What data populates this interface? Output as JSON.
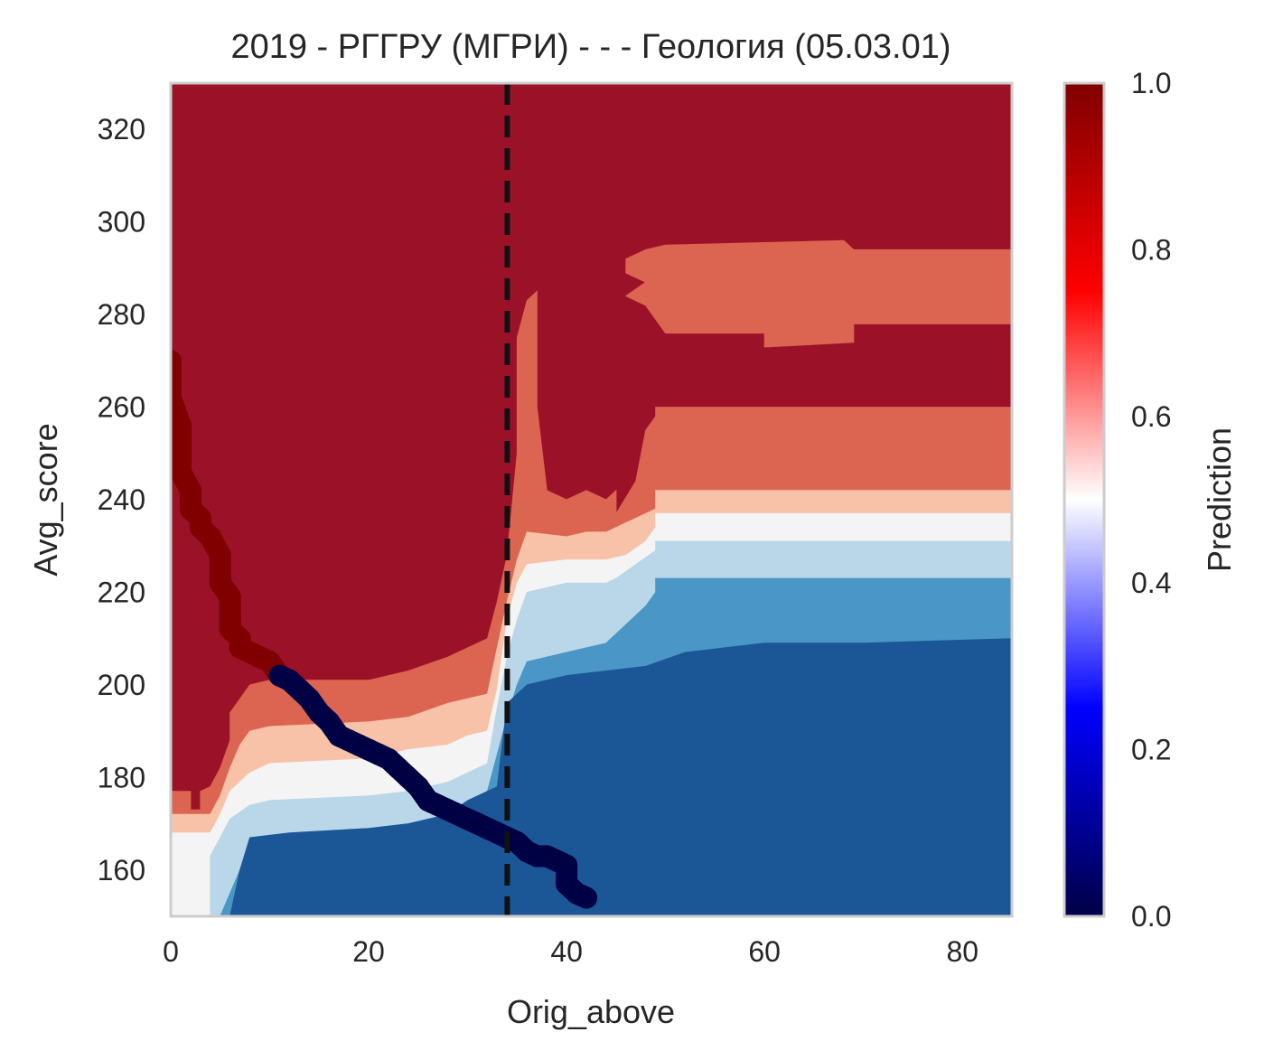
{
  "chart_data": {
    "type": "heatmap",
    "title": "2019 - РГГРУ (МГРИ) - - - Геология (05.03.01)",
    "xlabel": "Orig_above",
    "ylabel": "Avg_score",
    "xlim": [
      0,
      85
    ],
    "ylim": [
      150,
      330
    ],
    "x_ticks": [
      "0",
      "20",
      "40",
      "60",
      "80"
    ],
    "x_tick_values": [
      0,
      20,
      40,
      60,
      80
    ],
    "y_ticks": [
      "160",
      "180",
      "200",
      "220",
      "240",
      "260",
      "280",
      "300",
      "320"
    ],
    "y_tick_values": [
      160,
      180,
      200,
      220,
      240,
      260,
      280,
      300,
      320
    ],
    "vline_x": 34,
    "vline_style": "dashed",
    "colorbar": {
      "label": "Prediction",
      "range": [
        0,
        1
      ],
      "ticks": [
        "0.0",
        "0.2",
        "0.4",
        "0.6",
        "0.8",
        "1.0"
      ],
      "tick_values": [
        0,
        0.2,
        0.4,
        0.6,
        0.8,
        1.0
      ],
      "colormap": "seismic"
    },
    "contour_levels": [
      {
        "range": "0.0-0.1",
        "color": "#1b5796"
      },
      {
        "range": "0.1-0.2",
        "color": "#4a97c7"
      },
      {
        "range": "0.2-0.3",
        "color": "#b9d7e8"
      },
      {
        "range": "0.3-0.4",
        "color": "#f4f4f4"
      },
      {
        "range": "0.4-0.5",
        "color": "#f8c2a8"
      },
      {
        "range": "0.5-0.6",
        "color": "#dc6551"
      },
      {
        "range": "0.6-1.0",
        "color": "#9b1228"
      }
    ],
    "regions": [
      {
        "level": 6,
        "points": [
          [
            0,
            150
          ],
          [
            0,
            330
          ],
          [
            85,
            330
          ],
          [
            85,
            150
          ]
        ]
      },
      {
        "level": 5,
        "points": [
          [
            0,
            150
          ],
          [
            0,
            177
          ],
          [
            2,
            177
          ],
          [
            2,
            173
          ],
          [
            3,
            173
          ],
          [
            3,
            177
          ],
          [
            4,
            178
          ],
          [
            5,
            182
          ],
          [
            6,
            188
          ],
          [
            6,
            194
          ],
          [
            7,
            197
          ],
          [
            8,
            200
          ],
          [
            10,
            201
          ],
          [
            20,
            201
          ],
          [
            24,
            203
          ],
          [
            28,
            206
          ],
          [
            32,
            210
          ],
          [
            33,
            218
          ],
          [
            34,
            228
          ],
          [
            35,
            250
          ],
          [
            35,
            275
          ],
          [
            36,
            283
          ],
          [
            37,
            285
          ],
          [
            37,
            260
          ],
          [
            38,
            242
          ],
          [
            40,
            240
          ],
          [
            42,
            242
          ],
          [
            44,
            240
          ],
          [
            45,
            242
          ],
          [
            45,
            237
          ],
          [
            47,
            244
          ],
          [
            48,
            255
          ],
          [
            49,
            258
          ],
          [
            49,
            260
          ],
          [
            85,
            260
          ],
          [
            85,
            150
          ]
        ]
      },
      {
        "level": 5,
        "points": [
          [
            46,
            292
          ],
          [
            48,
            294
          ],
          [
            50,
            295
          ],
          [
            68,
            296
          ],
          [
            69,
            294
          ],
          [
            85,
            294
          ],
          [
            85,
            278
          ],
          [
            69,
            278
          ],
          [
            69,
            274
          ],
          [
            60,
            273
          ],
          [
            60,
            276
          ],
          [
            50,
            276
          ],
          [
            48,
            282
          ],
          [
            46,
            284
          ],
          [
            48,
            287
          ],
          [
            46,
            289
          ]
        ]
      },
      {
        "level": 4,
        "points": [
          [
            0,
            150
          ],
          [
            0,
            172
          ],
          [
            4,
            172
          ],
          [
            5,
            176
          ],
          [
            6,
            182
          ],
          [
            7,
            187
          ],
          [
            8,
            190
          ],
          [
            10,
            191
          ],
          [
            20,
            192
          ],
          [
            24,
            193
          ],
          [
            28,
            196
          ],
          [
            32,
            198
          ],
          [
            33,
            208
          ],
          [
            34,
            218
          ],
          [
            35,
            227
          ],
          [
            36,
            233
          ],
          [
            40,
            232
          ],
          [
            42,
            233
          ],
          [
            44,
            233
          ],
          [
            45,
            234
          ],
          [
            47,
            236
          ],
          [
            49,
            238
          ],
          [
            49,
            242
          ],
          [
            85,
            242
          ],
          [
            85,
            150
          ]
        ]
      },
      {
        "level": 3,
        "points": [
          [
            0,
            150
          ],
          [
            0,
            168
          ],
          [
            4,
            168
          ],
          [
            5,
            172
          ],
          [
            6,
            177
          ],
          [
            8,
            181
          ],
          [
            10,
            183
          ],
          [
            20,
            184
          ],
          [
            24,
            186
          ],
          [
            28,
            187
          ],
          [
            30,
            189
          ],
          [
            32,
            190
          ],
          [
            33,
            199
          ],
          [
            34,
            214
          ],
          [
            35,
            222
          ],
          [
            36,
            226
          ],
          [
            40,
            227
          ],
          [
            44,
            227
          ],
          [
            46,
            228
          ],
          [
            48,
            231
          ],
          [
            49,
            234
          ],
          [
            49,
            237
          ],
          [
            85,
            237
          ],
          [
            85,
            150
          ]
        ]
      },
      {
        "level": 2,
        "points": [
          [
            4,
            150
          ],
          [
            4,
            163
          ],
          [
            5,
            167
          ],
          [
            6,
            171
          ],
          [
            8,
            174
          ],
          [
            10,
            175
          ],
          [
            20,
            176
          ],
          [
            24,
            177
          ],
          [
            28,
            179
          ],
          [
            30,
            181
          ],
          [
            32,
            183
          ],
          [
            33,
            195
          ],
          [
            34,
            206
          ],
          [
            35,
            214
          ],
          [
            36,
            220
          ],
          [
            40,
            222
          ],
          [
            44,
            222
          ],
          [
            45,
            223
          ],
          [
            47,
            226
          ],
          [
            49,
            229
          ],
          [
            49,
            231
          ],
          [
            85,
            231
          ],
          [
            85,
            150
          ]
        ]
      },
      {
        "level": 1,
        "points": [
          [
            5,
            150
          ],
          [
            6,
            155
          ],
          [
            7,
            160
          ],
          [
            8,
            163
          ],
          [
            10,
            164
          ],
          [
            20,
            165
          ],
          [
            24,
            167
          ],
          [
            27,
            169
          ],
          [
            30,
            173
          ],
          [
            32,
            177
          ],
          [
            33,
            185
          ],
          [
            34,
            193
          ],
          [
            35,
            200
          ],
          [
            36,
            205
          ],
          [
            40,
            207
          ],
          [
            44,
            209
          ],
          [
            46,
            213
          ],
          [
            48,
            217
          ],
          [
            49,
            220
          ],
          [
            49,
            223
          ],
          [
            85,
            223
          ],
          [
            85,
            150
          ]
        ]
      },
      {
        "level": 0,
        "points": [
          [
            6,
            150
          ],
          [
            7,
            160
          ],
          [
            8,
            167
          ],
          [
            12,
            168
          ],
          [
            20,
            169
          ],
          [
            24,
            170
          ],
          [
            28,
            172
          ],
          [
            30,
            175
          ],
          [
            33,
            178
          ],
          [
            34,
            196
          ],
          [
            36,
            200
          ],
          [
            40,
            202
          ],
          [
            44,
            203
          ],
          [
            48,
            204
          ],
          [
            52,
            207
          ],
          [
            56,
            208
          ],
          [
            60,
            209
          ],
          [
            70,
            209
          ],
          [
            85,
            210
          ],
          [
            85,
            150
          ]
        ]
      }
    ],
    "path_series": {
      "x": [
        0,
        0,
        1,
        1,
        1,
        2,
        2,
        2,
        3,
        3,
        4,
        5,
        5,
        6,
        6,
        6,
        7,
        7,
        8,
        9,
        10,
        11,
        12,
        13,
        14,
        15,
        16,
        17,
        18,
        19,
        20,
        21,
        22,
        23,
        24,
        25,
        26,
        27,
        28,
        29,
        30,
        31,
        32,
        33,
        34,
        35,
        36,
        37,
        38,
        39,
        40,
        40,
        41,
        42
      ],
      "y": [
        270,
        262,
        256,
        250,
        246,
        242,
        240,
        238,
        236,
        234,
        232,
        228,
        222,
        219,
        214,
        212,
        210,
        208,
        207,
        206,
        205,
        202,
        201,
        199,
        197,
        194,
        192,
        189,
        188,
        187,
        186,
        185,
        184,
        182,
        180,
        178,
        175,
        174,
        173,
        172,
        171,
        170,
        169,
        168,
        167,
        166,
        164,
        163,
        163,
        162,
        161,
        157,
        155,
        154
      ],
      "threshold": 202,
      "color_above": "#800000",
      "color_below": "#000045"
    }
  }
}
